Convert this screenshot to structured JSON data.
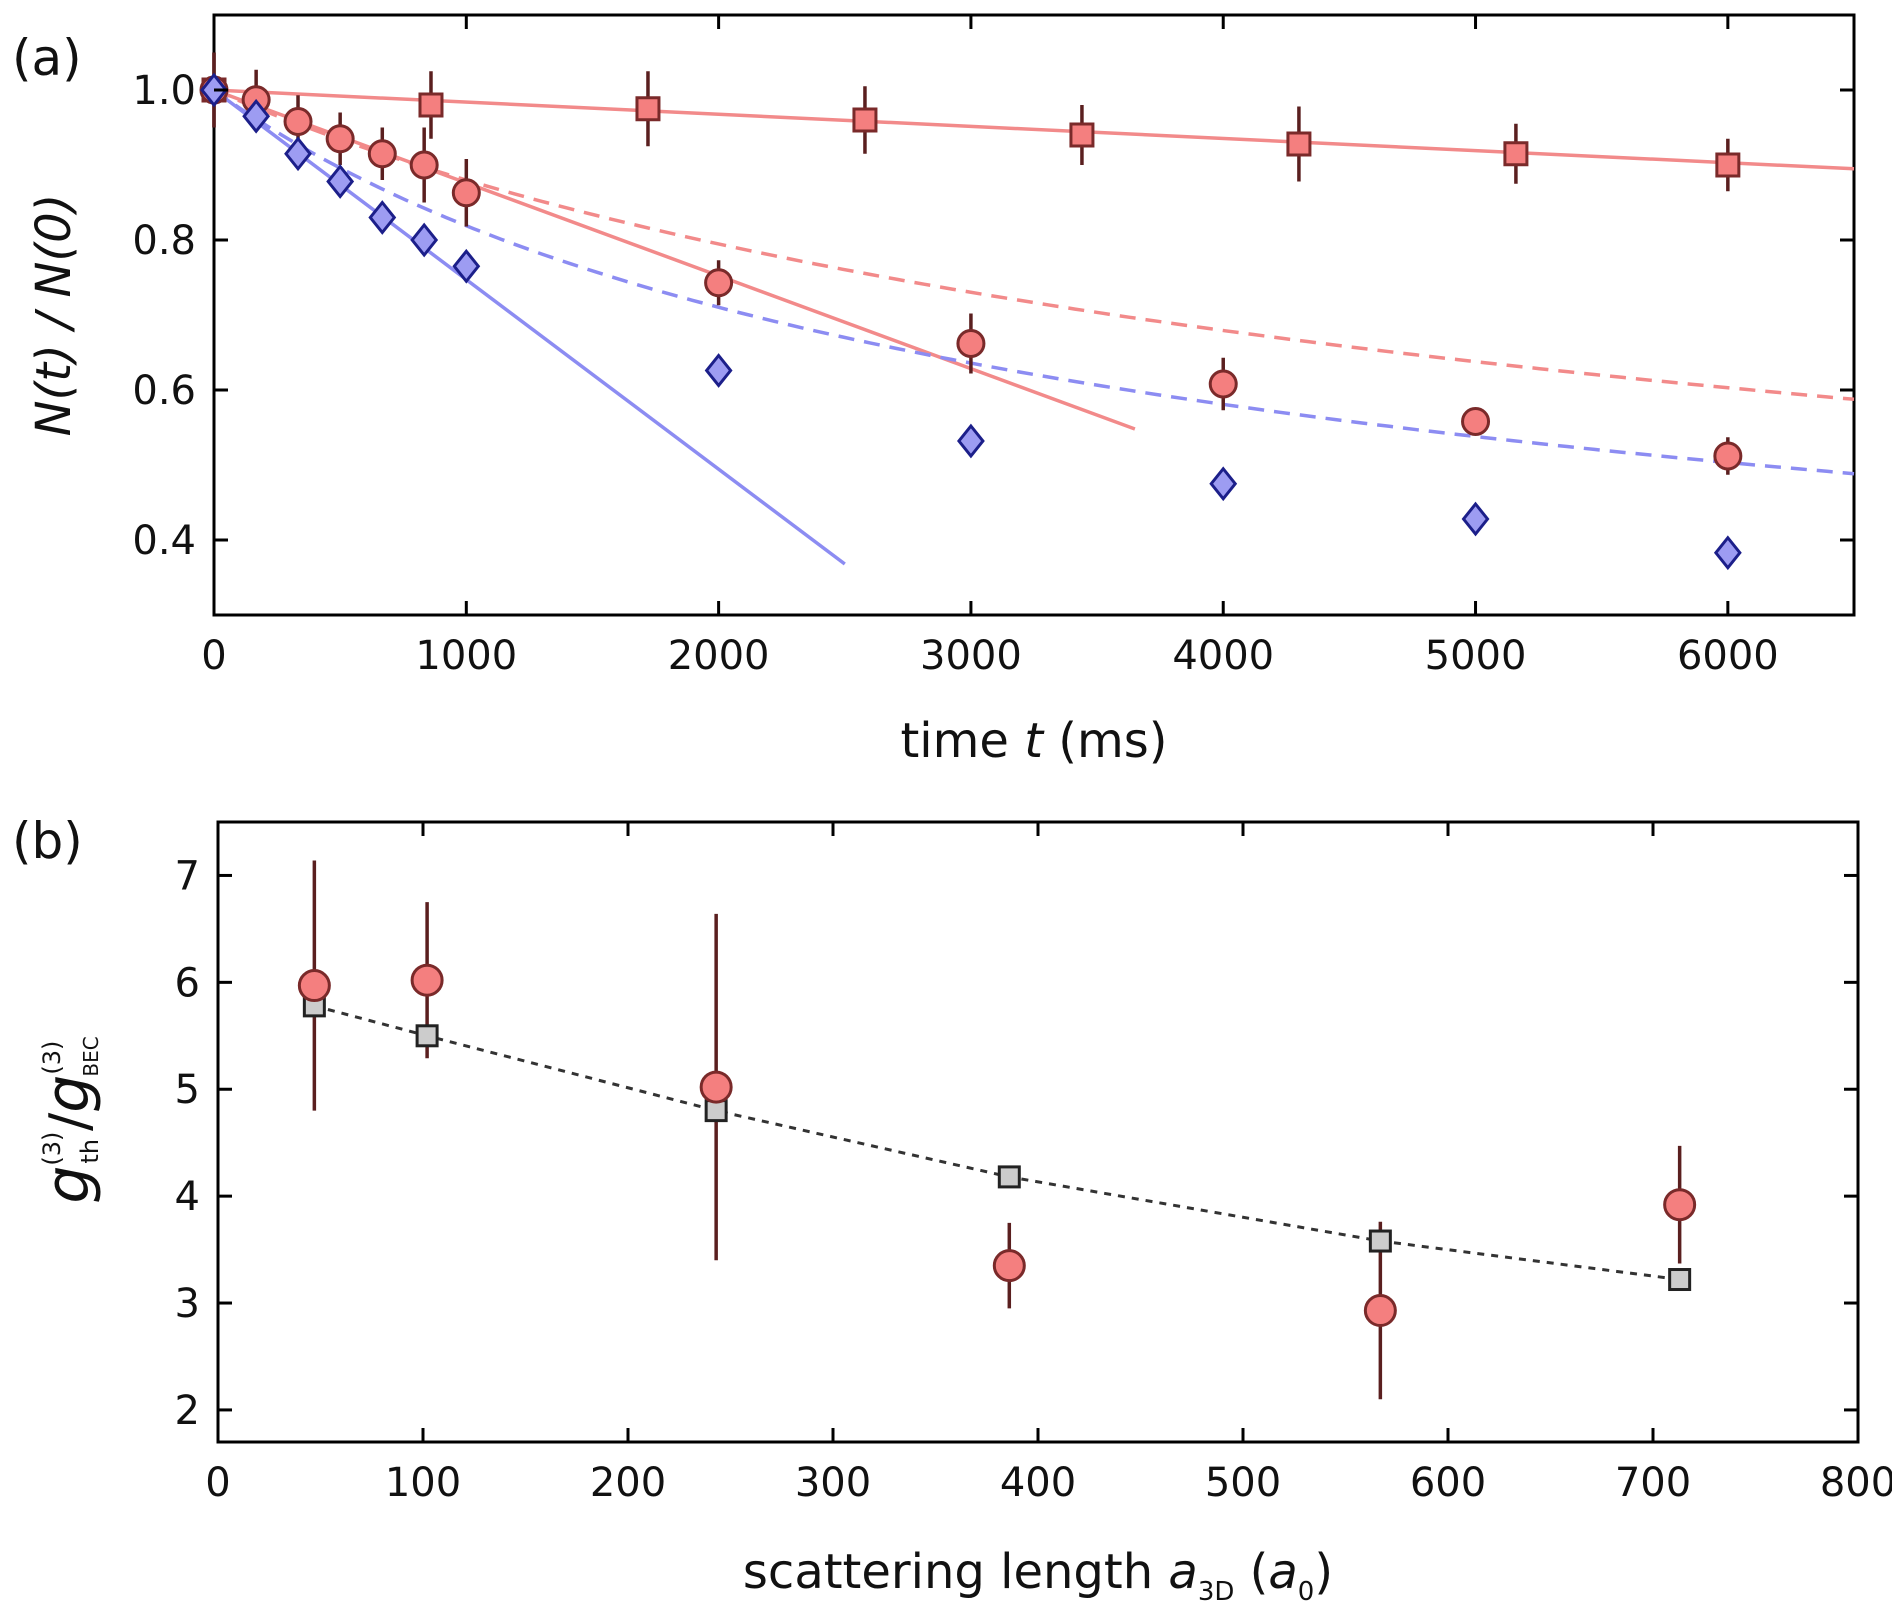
{
  "chart_data": [
    {
      "type": "scatter",
      "panel_label": "(a)",
      "xlabel": {
        "pre": "time ",
        "var": "t",
        "post": " (ms)"
      },
      "ylabel": "N(t) / N(0)",
      "xlim": [
        0,
        6500
      ],
      "ylim": [
        0.3,
        1.1
      ],
      "xticks": [
        0,
        1000,
        2000,
        3000,
        4000,
        5000,
        6000
      ],
      "xtick_labels": [
        "0",
        "1000",
        "2000",
        "3000",
        "4000",
        "5000",
        "6000"
      ],
      "yticks": [
        0.4,
        0.6,
        0.8,
        1.0
      ],
      "ytick_labels": [
        "0.4",
        "0.6",
        "0.8",
        "1.0"
      ],
      "series": [
        {
          "name": "squares",
          "marker": "square",
          "fill": "#f47f7f",
          "edge": "#7a2a2a",
          "x": [
            0,
            860,
            1720,
            2580,
            3440,
            4300,
            5160,
            6000
          ],
          "y": [
            1.0,
            0.98,
            0.975,
            0.96,
            0.94,
            0.928,
            0.915,
            0.9
          ],
          "err": [
            0.05,
            0.045,
            0.05,
            0.045,
            0.04,
            0.05,
            0.04,
            0.035
          ]
        },
        {
          "name": "circles",
          "marker": "circle",
          "fill": "#f47f7f",
          "edge": "#7a2a2a",
          "x": [
            0,
            167,
            333,
            500,
            667,
            833,
            1000,
            2000,
            3000,
            4000,
            5000,
            6000
          ],
          "y": [
            1.0,
            0.987,
            0.958,
            0.935,
            0.915,
            0.9,
            0.863,
            0.743,
            0.662,
            0.608,
            0.558,
            0.512
          ],
          "err": [
            0.05,
            0.04,
            0.035,
            0.035,
            0.035,
            0.05,
            0.045,
            0.03,
            0.04,
            0.035,
            0.015,
            0.025
          ]
        },
        {
          "name": "diamonds",
          "marker": "diamond",
          "fill": "#9d9cf2",
          "edge": "#1c1f8a",
          "x": [
            0,
            167,
            333,
            500,
            667,
            833,
            1000,
            2000,
            3000,
            4000,
            5000,
            6000
          ],
          "y": [
            1.0,
            0.965,
            0.915,
            0.878,
            0.83,
            0.8,
            0.765,
            0.626,
            0.532,
            0.475,
            0.428,
            0.383
          ],
          "err": [
            0,
            0,
            0,
            0,
            0,
            0,
            0,
            0,
            0,
            0,
            0,
            0
          ]
        }
      ],
      "lines": [
        {
          "name": "square-fit",
          "color": "#f28a8a",
          "style": "solid",
          "x": [
            0,
            6500
          ],
          "y": [
            1.0,
            0.895
          ]
        },
        {
          "name": "circle-linear-fit",
          "color": "#f28a8a",
          "style": "solid",
          "x": [
            0,
            3650
          ],
          "y": [
            1.0,
            0.548
          ]
        },
        {
          "name": "diamond-linear-fit",
          "color": "#8c8cf2",
          "style": "solid",
          "x": [
            0,
            2500
          ],
          "y": [
            1.0,
            0.368
          ]
        },
        {
          "name": "circle-decay-fit",
          "color": "#f28a8a",
          "style": "dashed",
          "decay": {
            "A": 0.35,
            "k": 0.4167
          },
          "x_range": [
            0,
            6500
          ]
        },
        {
          "name": "diamond-decay-fit",
          "color": "#8c8cf2",
          "style": "dashed",
          "decay": {
            "A": 0.93,
            "k": 0.264
          },
          "x_range": [
            0,
            6500
          ]
        }
      ]
    },
    {
      "type": "scatter",
      "panel_label": "(b)",
      "xlabel": {
        "pre": "scattering length ",
        "var": "a",
        "sub": "3D",
        "post_open": " (",
        "var2": "a",
        "sub2": "0",
        "post_close": ")"
      },
      "ylabel": {
        "g": "g",
        "sup": "(3)",
        "sub_th": "th",
        "slash": "/",
        "sub_bec": "BEC"
      },
      "xlim": [
        0,
        800
      ],
      "ylim": [
        1.7,
        7.5
      ],
      "xticks": [
        0,
        100,
        200,
        300,
        400,
        500,
        600,
        700,
        800
      ],
      "xtick_labels": [
        "0",
        "100",
        "200",
        "300",
        "400",
        "500",
        "600",
        "700",
        "800"
      ],
      "yticks": [
        2,
        3,
        4,
        5,
        6,
        7
      ],
      "ytick_labels": [
        "2",
        "3",
        "4",
        "5",
        "6",
        "7"
      ],
      "series": [
        {
          "name": "theory-squares",
          "marker": "square",
          "fill": "#cccccc",
          "edge": "#222222",
          "x": [
            47,
            102,
            243,
            386,
            567,
            713
          ],
          "y": [
            5.78,
            5.5,
            4.8,
            4.18,
            3.58,
            3.22
          ],
          "err": [
            0,
            0,
            0,
            0,
            0,
            0
          ]
        },
        {
          "name": "measured-circles",
          "marker": "circle",
          "fill": "#f47f7f",
          "edge": "#7a2a2a",
          "x": [
            47,
            102,
            243,
            386,
            567,
            713
          ],
          "y": [
            5.97,
            6.02,
            5.02,
            3.35,
            2.93,
            3.92
          ],
          "err": [
            1.17,
            0.73,
            1.62,
            0.4,
            0.83,
            0.55
          ]
        }
      ],
      "lines": [
        {
          "name": "theory-dotted",
          "color": "#333333",
          "style": "dotted",
          "x": [
            47,
            102,
            243,
            386,
            567,
            713
          ],
          "y": [
            5.78,
            5.5,
            4.8,
            4.18,
            3.58,
            3.22
          ]
        }
      ]
    }
  ]
}
